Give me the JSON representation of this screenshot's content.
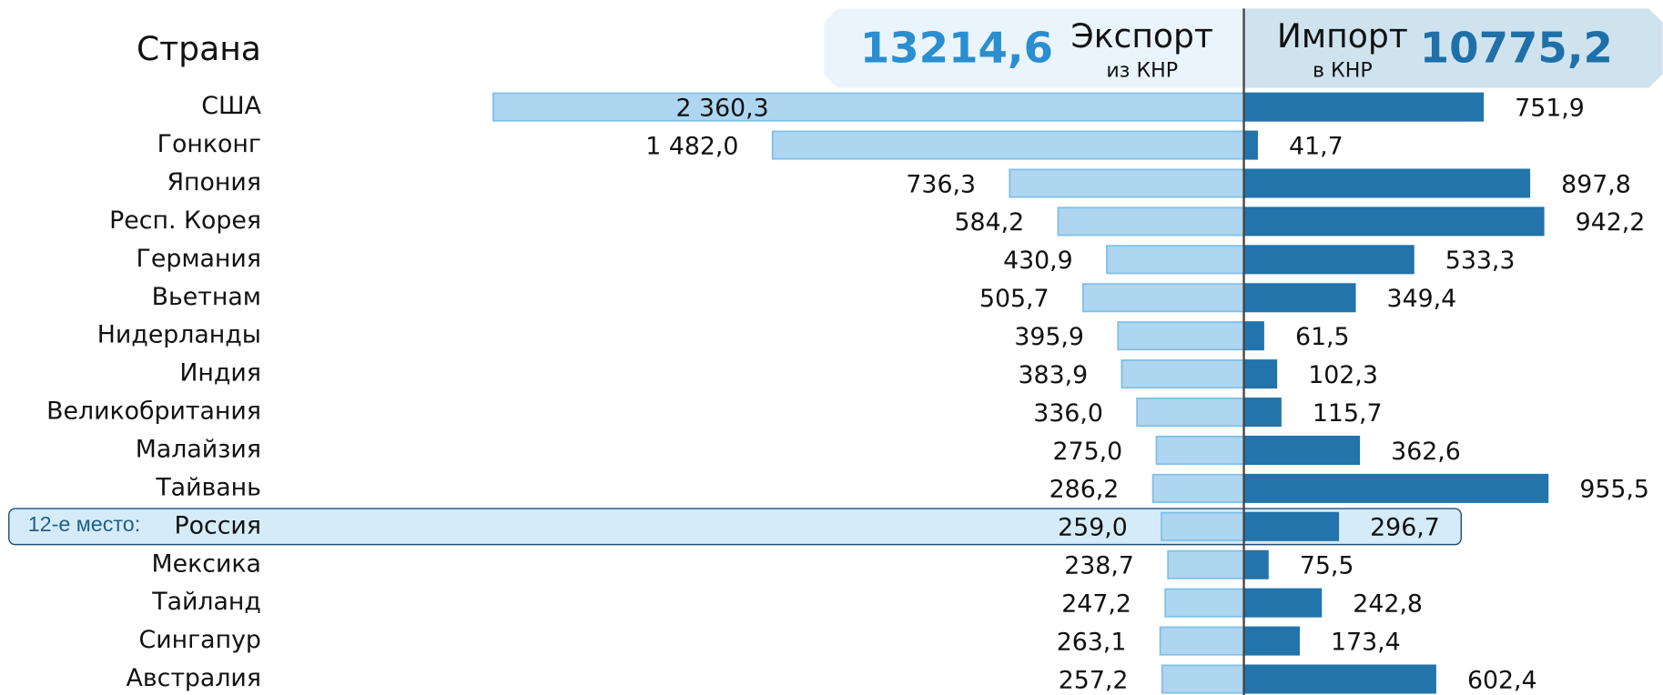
{
  "chart_data": {
    "type": "diverging_bar",
    "category_header": "Страна",
    "categories": [
      "США",
      "Гонконг",
      "Япония",
      "Респ. Корея",
      "Германия",
      "Вьетнам",
      "Нидерланды",
      "Индия",
      "Великобритания",
      "Малайзия",
      "Тайвань",
      "Россия",
      "Мексика",
      "Тайланд",
      "Сингапур",
      "Австралия"
    ],
    "series": [
      {
        "name": "Экспорт",
        "subtitle": "из КНР",
        "total": "13214,6",
        "color": "#aed6f1",
        "stroke": "#7fbfe8",
        "values": [
          2360.3,
          1482.0,
          736.3,
          584.2,
          430.9,
          505.7,
          395.9,
          383.9,
          336.0,
          275.0,
          286.2,
          259.0,
          238.7,
          247.2,
          263.1,
          257.2
        ],
        "value_labels": [
          "2 360,3",
          "1 482,0",
          "736,3",
          "584,2",
          "430,9",
          "505,7",
          "395,9",
          "383,9",
          "336,0",
          "275,0",
          "286,2",
          "259,0",
          "238,7",
          "247,2",
          "263,1",
          "257,2"
        ]
      },
      {
        "name": "Импорт",
        "subtitle": "в КНР",
        "total": "10775,2",
        "color": "#2274aa",
        "stroke": "#2274aa",
        "values": [
          751.9,
          41.7,
          897.8,
          942.2,
          533.3,
          349.4,
          61.5,
          102.3,
          115.7,
          362.6,
          955.5,
          296.7,
          75.5,
          242.8,
          173.4,
          602.4
        ],
        "value_labels": [
          "751,9",
          "41,7",
          "897,8",
          "942,2",
          "533,3",
          "349,4",
          "61,5",
          "102,3",
          "115,7",
          "362,6",
          "955,5",
          "296,7",
          "75,5",
          "242,8",
          "173,4",
          "602,4"
        ]
      }
    ],
    "highlight": {
      "category": "Россия",
      "label": "12-е место:"
    }
  }
}
